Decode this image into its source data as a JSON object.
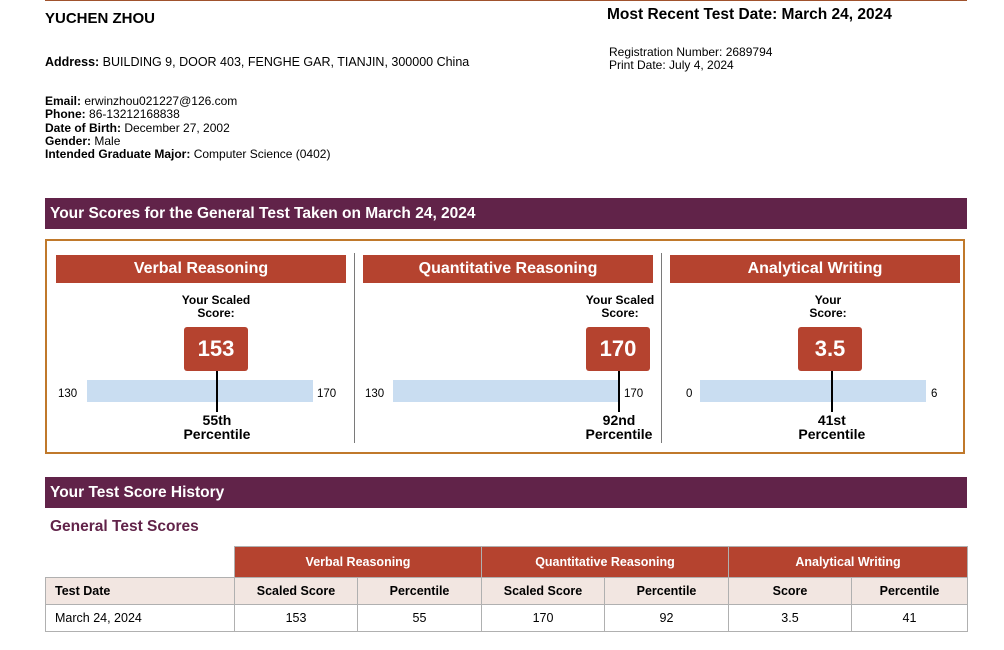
{
  "header": {
    "name": "YUCHEN ZHOU",
    "most_recent_test_date": "Most Recent Test Date: March 24, 2024",
    "address_label": "Address:",
    "address": "BUILDING 9, DOOR 403, FENGHE GAR, TIANJIN, 300000 China",
    "registration_number": "Registration Number: 2689794",
    "print_date": "Print Date: July 4, 2024",
    "email_label": "Email:",
    "email": "erwinzhou021227@126.com",
    "phone_label": "Phone:",
    "phone": "86-13212168838",
    "dob_label": "Date of Birth:",
    "dob": "December 27, 2002",
    "gender_label": "Gender:",
    "gender": "Male",
    "major_label": "Intended Graduate Major:",
    "major": "Computer Science (0402)"
  },
  "scores_section": {
    "title": "Your Scores for the General Test Taken on March 24, 2024",
    "sections": [
      {
        "name": "Verbal Reasoning",
        "caption_line1": "Your Scaled",
        "caption_line2": "Score:",
        "score": "153",
        "score_value": 153,
        "scale_min": "130",
        "scale_max": "170",
        "percentile_line1": "55th",
        "percentile_line2": "Percentile"
      },
      {
        "name": "Quantitative Reasoning",
        "caption_line1": "Your Scaled",
        "caption_line2": "Score:",
        "score": "170",
        "score_value": 170,
        "scale_min": "130",
        "scale_max": "170",
        "percentile_line1": "92nd",
        "percentile_line2": "Percentile"
      },
      {
        "name": "Analytical Writing",
        "caption_line1": "Your",
        "caption_line2": "Score:",
        "score": "3.5",
        "score_value": 3.5,
        "scale_min": "0",
        "scale_max": "6",
        "percentile_line1": "41st",
        "percentile_line2": "Percentile"
      }
    ]
  },
  "history": {
    "title": "Your Test Score History",
    "subtitle": "General Test Scores",
    "group_headers": [
      "Verbal Reasoning",
      "Quantitative Reasoning",
      "Analytical Writing"
    ],
    "column_headers": [
      "Test Date",
      "Scaled Score",
      "Percentile",
      "Scaled Score",
      "Percentile",
      "Score",
      "Percentile"
    ],
    "rows": [
      [
        "March 24, 2024",
        "153",
        "55",
        "170",
        "92",
        "3.5",
        "41"
      ]
    ]
  },
  "colors": {
    "band": "#612349",
    "section_header": "#b5432f",
    "box_border": "#c0792b",
    "scale_bar": "#c9ddf1"
  }
}
